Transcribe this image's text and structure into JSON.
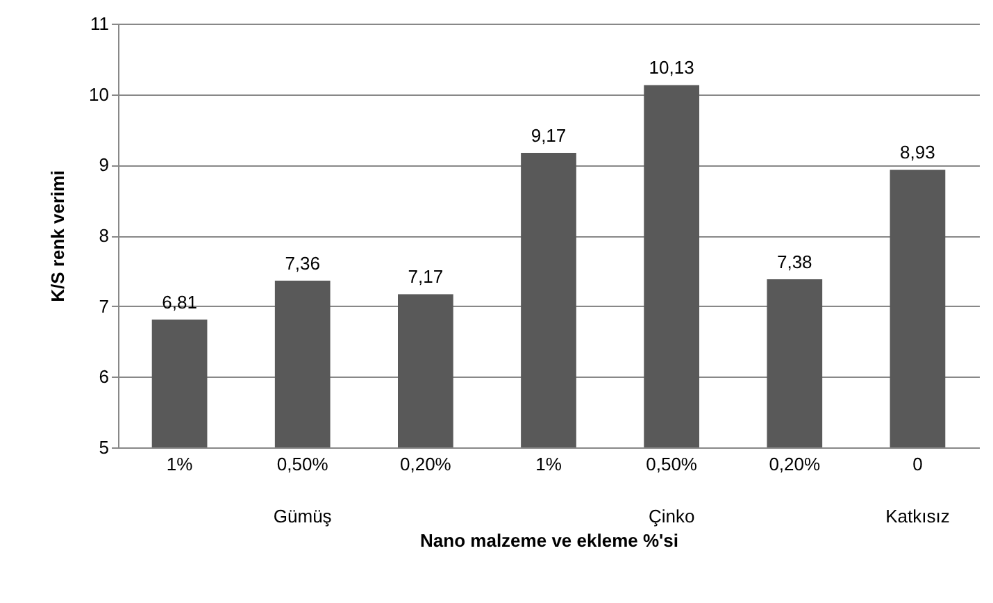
{
  "chart_data": {
    "type": "bar",
    "xlabel": "Nano malzeme ve ekleme %'si",
    "ylabel": "K/S renk verimi",
    "categories": [
      "1%",
      "0,50%",
      "0,20%",
      "1%",
      "0,50%",
      "0,20%",
      "0"
    ],
    "values": [
      6.81,
      7.36,
      7.17,
      9.17,
      10.13,
      7.38,
      8.93
    ],
    "value_labels": [
      "6,81",
      "7,36",
      "7,17",
      "9,17",
      "10,13",
      "7,38",
      "8,93"
    ],
    "color": "#595959",
    "ylim": [
      5,
      11
    ],
    "yticks": [
      5,
      6,
      7,
      8,
      9,
      10,
      11
    ],
    "grid": "y",
    "annotations": [
      "Gümüş",
      "Çinko",
      "Katkısız"
    ]
  }
}
